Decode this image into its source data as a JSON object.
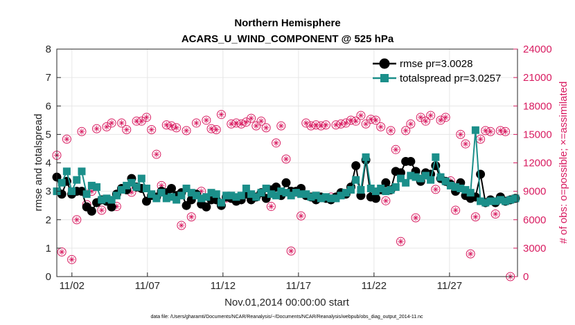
{
  "chart_data": {
    "type": "line",
    "title": [
      "Northern Hemisphere",
      "ACARS_U_WIND_COMPONENT @ 525 hPa"
    ],
    "xlabel": "Nov.01,2014 00:00:00 start",
    "ylabel": "rmse and totalspread",
    "ylabel_right": "# of obs: o=possible; ×=assimilated",
    "xlim": [
      0,
      30.5
    ],
    "ylim": [
      0,
      8
    ],
    "ylim_right": [
      0,
      24000
    ],
    "x_tick_values": [
      1,
      6,
      11,
      16,
      21,
      26
    ],
    "x_tick_labels": [
      "11/02",
      "11/07",
      "11/12",
      "11/17",
      "11/22",
      "11/27"
    ],
    "y_ticks": [
      0,
      1,
      2,
      3,
      4,
      5,
      6,
      7,
      8
    ],
    "y_ticks_right": [
      "0",
      "3000",
      "6000",
      "9000",
      "12000",
      "15000",
      "18000",
      "21000",
      "24000"
    ],
    "grid": true,
    "legend_position": "top-right",
    "series": [
      {
        "name": "rmse pr=3.0028",
        "color": "#000000",
        "marker": "circle",
        "values": [
          3.5,
          2.9,
          3.35,
          2.9,
          3.0,
          3.0,
          2.45,
          2.3,
          2.6,
          2.7,
          2.65,
          2.45,
          2.9,
          3.1,
          3.05,
          3.45,
          3.15,
          3.1,
          2.65,
          2.85,
          2.8,
          3.0,
          2.95,
          3.1,
          2.85,
          2.95,
          2.5,
          2.7,
          2.9,
          2.55,
          2.45,
          2.7,
          2.7,
          2.5,
          2.8,
          2.75,
          2.65,
          2.7,
          2.9,
          2.7,
          2.8,
          2.95,
          2.75,
          3.05,
          3.15,
          2.85,
          3.3,
          3.0,
          3.0,
          3.1,
          2.85,
          2.8,
          2.7,
          2.8,
          2.75,
          2.7,
          2.8,
          2.95,
          2.9,
          3.15,
          3.9,
          2.85,
          4.1,
          2.8,
          2.75,
          3.05,
          3.3,
          3.05,
          3.7,
          3.65,
          4.05,
          4.05,
          3.7,
          3.35,
          3.65,
          3.6,
          3.9,
          3.45,
          3.35,
          3.25,
          3.0,
          3.3,
          2.85,
          2.75,
          2.8,
          3.6,
          2.6,
          2.7,
          2.6,
          2.8,
          2.65,
          2.7,
          2.75
        ],
        "x_step": 0.33
      },
      {
        "name": "totalspread pr=3.0257",
        "color": "#1b8f8a",
        "marker": "square",
        "values": [
          3.0,
          3.3,
          3.7,
          3.0,
          3.4,
          3.7,
          2.9,
          3.2,
          3.15,
          2.7,
          2.75,
          2.7,
          2.85,
          3.05,
          3.2,
          3.3,
          3.15,
          3.45,
          3.1,
          2.9,
          2.75,
          2.95,
          2.75,
          2.8,
          2.7,
          2.85,
          3.1,
          2.95,
          2.85,
          2.75,
          2.8,
          2.95,
          2.9,
          2.6,
          2.85,
          2.85,
          2.8,
          2.85,
          3.1,
          2.9,
          2.8,
          2.95,
          3.1,
          2.9,
          2.85,
          3.0,
          2.95,
          2.85,
          2.95,
          2.9,
          2.9,
          2.8,
          2.85,
          2.75,
          2.8,
          2.75,
          2.75,
          2.85,
          2.95,
          3.05,
          3.4,
          3.05,
          4.2,
          3.1,
          3.0,
          3.1,
          3.0,
          3.05,
          3.15,
          3.45,
          3.3,
          3.55,
          3.5,
          3.45,
          3.55,
          3.4,
          4.2,
          3.5,
          3.35,
          3.2,
          3.15,
          3.1,
          3.05,
          2.95,
          5.15,
          2.65,
          2.6,
          2.65,
          2.65,
          2.7,
          2.65,
          2.7,
          2.75
        ],
        "x_step": 0.33
      },
      {
        "name": "possible",
        "color": "#d81b60",
        "marker": "open-circle",
        "axis": "right",
        "values": [
          12800,
          2600,
          14500,
          1800,
          6000,
          15300,
          7600,
          9000,
          15600,
          7000,
          15800,
          16200,
          7400,
          16200,
          15500,
          8900,
          16400,
          16400,
          16800,
          15500,
          12900,
          9600,
          16000,
          15900,
          15700,
          5400,
          15400,
          6300,
          16200,
          9000,
          16500,
          15600,
          15500,
          17100,
          8300,
          16100,
          16200,
          16100,
          16300,
          16700,
          15900,
          16400,
          15700,
          7400,
          14100,
          15900,
          12400,
          2700,
          8900,
          6400,
          16200,
          15900,
          16000,
          15900,
          16000,
          8400,
          16000,
          16100,
          16200,
          16500,
          16400,
          17000,
          16100,
          16600,
          16500,
          15800,
          8000,
          15400,
          13400,
          3700,
          15400,
          16100,
          6200,
          16800,
          16400,
          17000,
          9200,
          16500,
          16800,
          10100,
          7000,
          15000,
          14000,
          2400,
          6300,
          14500,
          15400,
          15300,
          6600,
          15400,
          15300,
          0
        ],
        "x_step": 0.33
      }
    ],
    "footer": "data file: /Users/gharamti/Documents/NCAR/Reanalysis/~/Documents/NCAR/Reanalysis/webpub/obs_diag_output_2014-11.nc"
  }
}
